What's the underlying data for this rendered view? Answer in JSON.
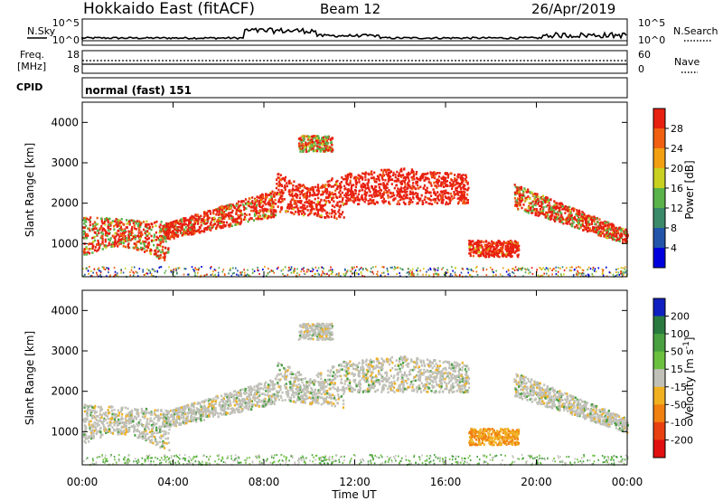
{
  "header": {
    "station": "Hokkaido East (fitACF)",
    "beam": "Beam 12",
    "date": "26/Apr/2019"
  },
  "panels": {
    "noise": {
      "left_label": "N.Sky",
      "right_label": "N.Search",
      "tick_top": "10^5",
      "tick_bottom": "10^0",
      "right_tick_top": "10^5",
      "right_tick_bottom": "10^0"
    },
    "freq": {
      "label_line1": "Freq.",
      "label_line2": "[MHz]",
      "tick_top": "18",
      "tick_bottom": "8",
      "right_label": "Nave",
      "right_tick_top": "60",
      "right_tick_bottom": "0"
    },
    "cpid": {
      "label": "CPID",
      "value": "normal (fast) 151"
    }
  },
  "chart_data": [
    {
      "type": "heatmap",
      "parameter": "power",
      "ylabel": "Slant Range [km]",
      "ylim": [
        180,
        4500
      ],
      "yticks": [
        1000,
        2000,
        3000,
        4000
      ],
      "colorbar_label": "Power [dB]",
      "colorbar_ticks": [
        4,
        8,
        12,
        16,
        20,
        24,
        28
      ],
      "colorbar_range": [
        0,
        32
      ],
      "colors": [
        "#0000dd",
        "#2255aa",
        "#3a8a6a",
        "#5ab34a",
        "#c8d020",
        "#f0a010",
        "#f06010",
        "#e82010"
      ]
    },
    {
      "type": "heatmap",
      "parameter": "velocity",
      "ylabel": "Slant Range [km]",
      "ylim": [
        180,
        4500
      ],
      "yticks": [
        1000,
        2000,
        3000,
        4000
      ],
      "colorbar_label": "Velocity [m s^-1]",
      "colorbar_ticks": [
        200,
        100,
        50,
        15,
        -15,
        -50,
        -100,
        -200
      ],
      "colors": [
        "#1020c0",
        "#2a7a40",
        "#48a040",
        "#6cc040",
        "#c0c0b8",
        "#f0b020",
        "#f08010",
        "#e84010",
        "#e01010"
      ]
    }
  ],
  "time_axis": {
    "label": "Time UT",
    "ticks": [
      "00:00",
      "04:00",
      "08:00",
      "12:00",
      "16:00",
      "20:00",
      "00:00"
    ]
  }
}
